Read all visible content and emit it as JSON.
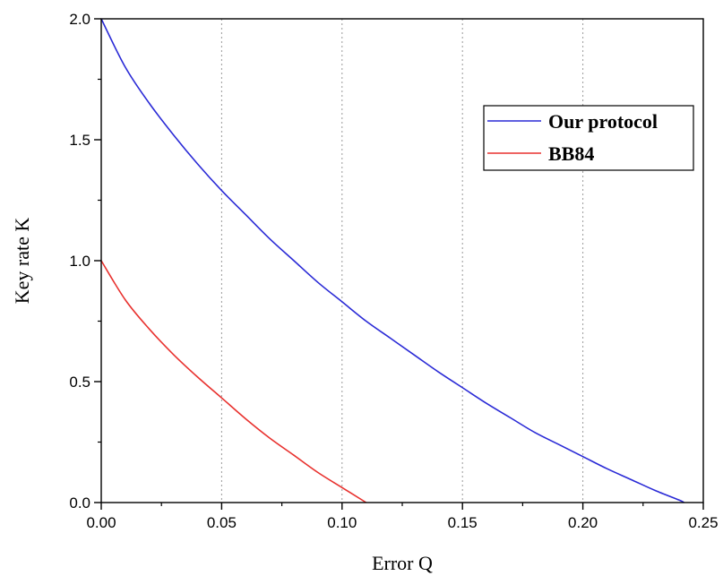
{
  "chart_data": {
    "type": "line",
    "xlabel": "Error  Q",
    "ylabel": "Key rate  K",
    "xlim": [
      0,
      0.25
    ],
    "ylim": [
      0,
      2.0
    ],
    "x_ticks": [
      0.0,
      0.05,
      0.1,
      0.15,
      0.2,
      0.25
    ],
    "x_tick_labels": [
      "0.00",
      "0.05",
      "0.10",
      "0.15",
      "0.20",
      "0.25"
    ],
    "y_ticks": [
      0.0,
      0.5,
      1.0,
      1.5,
      2.0
    ],
    "y_tick_labels": [
      "0.0",
      "0.5",
      "1.0",
      "1.5",
      "2.0"
    ],
    "grid": "vertical dotted at major x ticks",
    "legend_position": "top-right",
    "series": [
      {
        "name": "Our protocol",
        "color": "#2a2ad6",
        "x": [
          0.0,
          0.01,
          0.02,
          0.03,
          0.04,
          0.05,
          0.06,
          0.07,
          0.08,
          0.09,
          0.1,
          0.11,
          0.12,
          0.13,
          0.14,
          0.15,
          0.16,
          0.17,
          0.18,
          0.19,
          0.2,
          0.21,
          0.22,
          0.23,
          0.24,
          0.242
        ],
        "y": [
          2.0,
          1.8,
          1.65,
          1.52,
          1.4,
          1.29,
          1.19,
          1.09,
          1.0,
          0.91,
          0.83,
          0.75,
          0.68,
          0.61,
          0.54,
          0.475,
          0.41,
          0.35,
          0.29,
          0.24,
          0.19,
          0.14,
          0.095,
          0.05,
          0.01,
          0.0
        ]
      },
      {
        "name": "BB84",
        "color": "#e8312e",
        "x": [
          0.0,
          0.01,
          0.02,
          0.03,
          0.04,
          0.05,
          0.06,
          0.07,
          0.08,
          0.09,
          0.1,
          0.11
        ],
        "y": [
          1.0,
          0.838,
          0.717,
          0.612,
          0.519,
          0.4326,
          0.3459,
          0.2662,
          0.1955,
          0.1241,
          0.062,
          0.0
        ]
      }
    ]
  }
}
